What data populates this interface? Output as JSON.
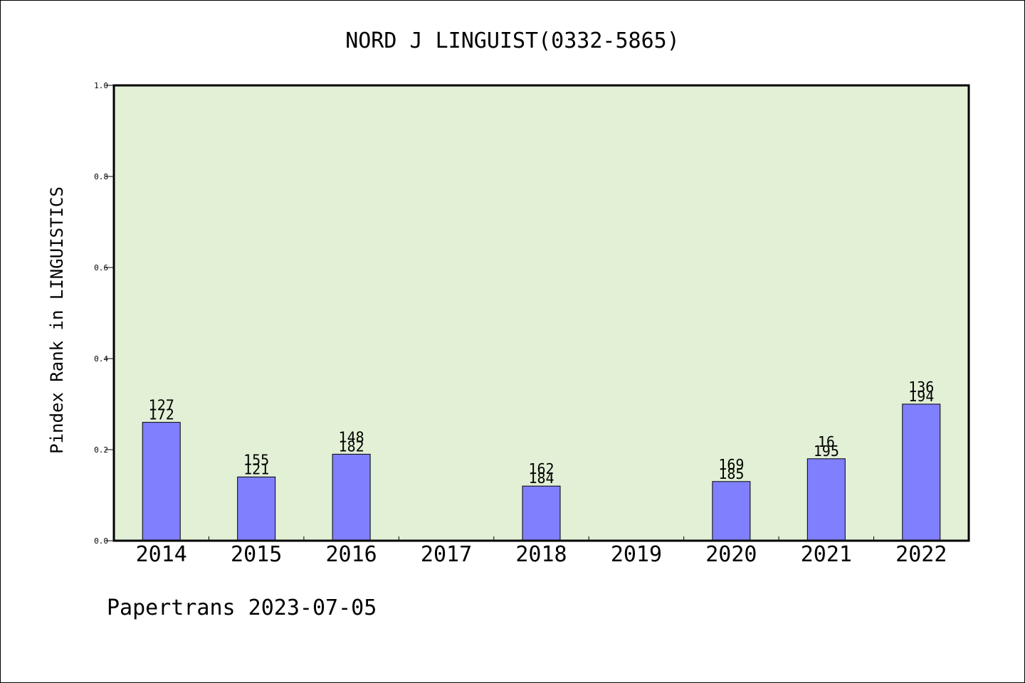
{
  "chart_data": {
    "type": "bar",
    "title": "NORD J LINGUIST(0332-5865)",
    "ylabel": "Pindex Rank in LINGUISTICS",
    "xlabel": "",
    "footer": "Papertrans 2023-07-05",
    "ylim": [
      0,
      1.0
    ],
    "yticks": [
      "0.0",
      "0.2",
      "0.4",
      "0.6",
      "0.8",
      "1.0"
    ],
    "categories": [
      "2014",
      "2015",
      "2016",
      "2017",
      "2018",
      "2019",
      "2020",
      "2021",
      "2022"
    ],
    "values": [
      0.26,
      0.14,
      0.19,
      null,
      0.12,
      null,
      0.13,
      0.18,
      0.3
    ],
    "labels_top": [
      "127",
      "155",
      "148",
      "",
      "162",
      "",
      "169",
      "16",
      "136"
    ],
    "labels_bottom": [
      "172",
      "121",
      "182",
      "",
      "184",
      "",
      "185",
      "195",
      "194"
    ],
    "grid": false,
    "colors": {
      "plot_bg": "#e2f0d6",
      "bar_fill": "#8080ff",
      "bar_stroke": "#000000",
      "axis": "#000000"
    }
  }
}
